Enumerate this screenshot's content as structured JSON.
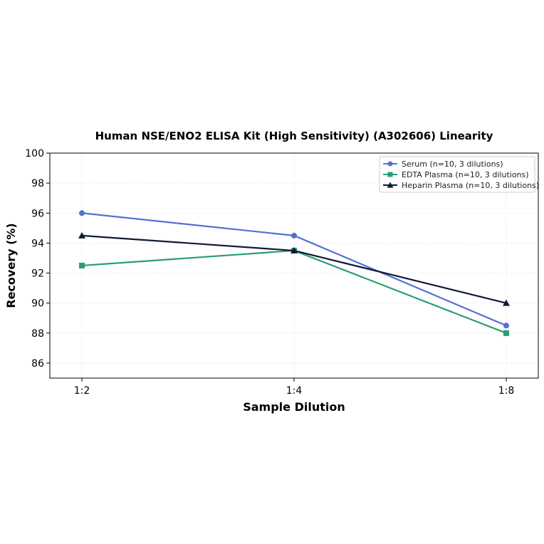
{
  "chart_data": {
    "type": "line",
    "title": "Human NSE/ENO2 ELISA Kit (High Sensitivity) (A302606) Linearity",
    "xlabel": "Sample Dilution",
    "ylabel": "Recovery (%)",
    "categories": [
      "1:2",
      "1:4",
      "1:8"
    ],
    "ylim": [
      85,
      100
    ],
    "yticks": [
      86,
      88,
      90,
      92,
      94,
      96,
      98,
      100
    ],
    "grid": true,
    "legend_position": "top-right",
    "series": [
      {
        "name": "Serum (n=10, 3 dilutions)",
        "values": [
          96.0,
          94.5,
          88.5
        ],
        "color": "#5470d4",
        "marker": "circle"
      },
      {
        "name": "EDTA Plasma (n=10, 3 dilutions)",
        "values": [
          92.5,
          93.5,
          88.0
        ],
        "color": "#2a9d78",
        "marker": "square"
      },
      {
        "name": "Heparin Plasma (n=10, 3 dilutions)",
        "values": [
          94.5,
          93.5,
          90.0
        ],
        "color": "#0f1a3a",
        "marker": "triangle"
      }
    ]
  }
}
